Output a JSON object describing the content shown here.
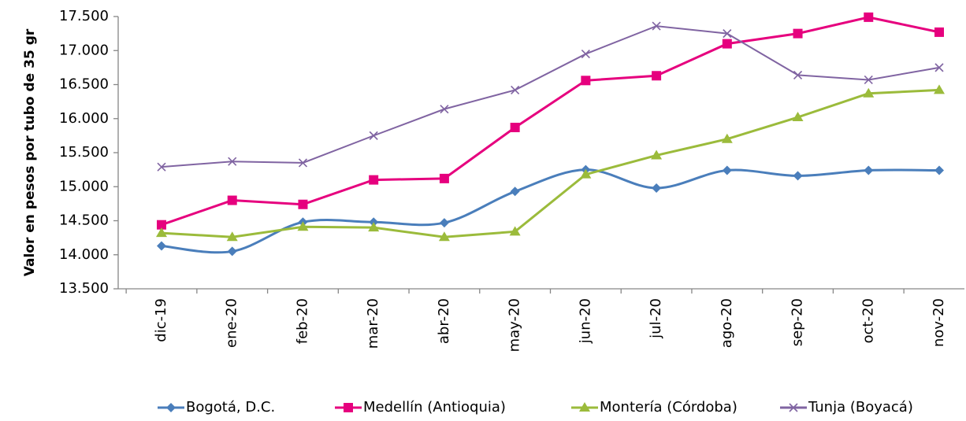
{
  "chart_data": {
    "type": "line",
    "y_label": "Valor en pesos por tubo de 35 gr",
    "categories": [
      "dic-19",
      "ene-20",
      "feb-20",
      "mar-20",
      "abr-20",
      "may-20",
      "jun-20",
      "jul-20",
      "ago-20",
      "sep-20",
      "oct-20",
      "nov-20"
    ],
    "series": [
      {
        "name": "Bogotá, D.C.",
        "color": "#4a7ebb",
        "marker": "diamond",
        "smooth": true,
        "values": [
          14130,
          14050,
          14480,
          14480,
          14470,
          14930,
          15250,
          14980,
          15240,
          15160,
          15240,
          15240
        ]
      },
      {
        "name": "Medellín (Antioquia)",
        "color": "#e6007e",
        "marker": "square",
        "smooth": false,
        "values": [
          14440,
          14800,
          14740,
          15100,
          15120,
          15870,
          16560,
          16630,
          17100,
          17250,
          17490,
          17270
        ]
      },
      {
        "name": "Montería (Córdoba)",
        "color": "#9bbb3b",
        "marker": "triangle",
        "smooth": false,
        "values": [
          14320,
          14260,
          14410,
          14400,
          14260,
          14340,
          15180,
          15460,
          15700,
          16020,
          16370,
          16420
        ]
      },
      {
        "name": "Tunja (Boyacá)",
        "color": "#8064a2",
        "marker": "x",
        "smooth": false,
        "values": [
          15290,
          15370,
          15350,
          15750,
          16140,
          16420,
          16950,
          17360,
          17250,
          16640,
          16570,
          16750
        ]
      }
    ],
    "ylim": [
      13500,
      17500
    ],
    "yticks": [
      {
        "value": 13500,
        "label": "13.500"
      },
      {
        "value": 14000,
        "label": "14.000"
      },
      {
        "value": 14500,
        "label": "14.500"
      },
      {
        "value": 15000,
        "label": "15.000"
      },
      {
        "value": 15500,
        "label": "15.500"
      },
      {
        "value": 16000,
        "label": "16.000"
      },
      {
        "value": 16500,
        "label": "16.500"
      },
      {
        "value": 17000,
        "label": "17.000"
      },
      {
        "value": 17500,
        "label": "17.500"
      }
    ],
    "legend": "bottom",
    "grid": false
  }
}
